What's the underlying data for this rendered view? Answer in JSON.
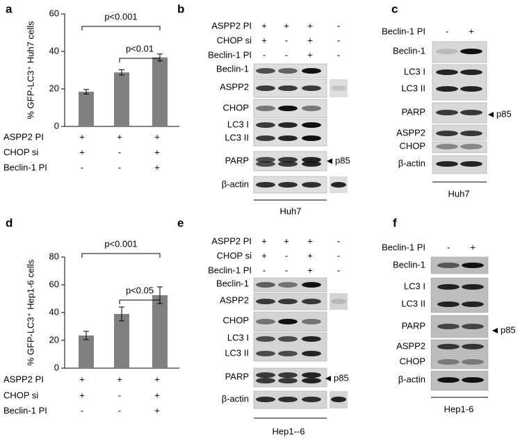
{
  "chart_data": [
    {
      "type": "bar",
      "panel_label": "a",
      "y_label": "% GFP-LC3⁺ Huh7 cells",
      "values": [
        18.5,
        28.8,
        36.8
      ],
      "errors": [
        1.2,
        1.4,
        1.8
      ],
      "color": "#808080",
      "ylim": [
        0,
        60
      ],
      "yticks": [
        0,
        20,
        40,
        60
      ],
      "annotations": [
        "p<0.001",
        "p<0.01"
      ],
      "conditions": [
        {
          "name": "ASPP2 PI",
          "signs": [
            "+",
            "+",
            "+"
          ]
        },
        {
          "name": "CHOP si",
          "signs": [
            "+",
            "-",
            "+"
          ]
        },
        {
          "name": "Beclin-1 PI",
          "signs": [
            "-",
            "-",
            "+"
          ]
        }
      ]
    },
    {
      "type": "bar",
      "panel_label": "d",
      "y_label": "% GFP-LC3⁺ Hep1-6 cells",
      "values": [
        23.5,
        39,
        52.5
      ],
      "errors": [
        3,
        5,
        6
      ],
      "color": "#808080",
      "ylim": [
        0,
        80
      ],
      "yticks": [
        0,
        20,
        40,
        60,
        80
      ],
      "annotations": [
        "p<0.001",
        "p<0.05"
      ],
      "conditions": [
        {
          "name": "ASPP2 PI",
          "signs": [
            "+",
            "+",
            "+"
          ]
        },
        {
          "name": "CHOP si",
          "signs": [
            "+",
            "-",
            "+"
          ]
        },
        {
          "name": "Beclin-1 PI",
          "signs": [
            "-",
            "-",
            "+"
          ]
        }
      ]
    }
  ],
  "blots": [
    {
      "panel_label": "b",
      "conditions": [
        {
          "name": "ASPP2 PI",
          "signs": [
            "+",
            "+",
            "+",
            "-"
          ]
        },
        {
          "name": "CHOP si",
          "signs": [
            "+",
            "-",
            "+",
            "-"
          ]
        },
        {
          "name": "Beclin-1 PI",
          "signs": [
            "-",
            "-",
            "+",
            "-"
          ]
        }
      ],
      "bands": [
        "Beclin-1",
        "ASPP2",
        "CHOP",
        "LC3 I",
        "LC3 II",
        "PARP",
        "β-actin"
      ],
      "arrow": "p85",
      "cell_line": "Huh7"
    },
    {
      "panel_label": "c",
      "conditions": [
        {
          "name": "Beclin-1 PI",
          "signs": [
            "-",
            "+"
          ]
        }
      ],
      "bands": [
        "Beclin-1",
        "LC3 I",
        "LC3 II",
        "PARP",
        "ASPP2",
        "CHOP",
        "β-actin"
      ],
      "arrow": "p85",
      "cell_line": "Huh7"
    },
    {
      "panel_label": "e",
      "conditions": [
        {
          "name": "ASPP2 PI",
          "signs": [
            "+",
            "+",
            "+",
            "-"
          ]
        },
        {
          "name": "CHOP si",
          "signs": [
            "+",
            "-",
            "+",
            "-"
          ]
        },
        {
          "name": "Beclin-1 PI",
          "signs": [
            "-",
            "-",
            "+",
            "-"
          ]
        }
      ],
      "bands": [
        "Beclin-1",
        "ASPP2",
        "CHOP",
        "LC3 I",
        "LC3 II",
        "PARP",
        "β-actin"
      ],
      "arrow": "p85",
      "cell_line": "Hep1--6"
    },
    {
      "panel_label": "f",
      "conditions": [
        {
          "name": "Beclin-1 PI",
          "signs": [
            "-",
            "+"
          ]
        }
      ],
      "bands": [
        "Beclin-1",
        "LC3 I",
        "LC3 II",
        "PARP",
        "ASPP2",
        "CHOP",
        "β-actin"
      ],
      "arrow": "p85",
      "cell_line": "Hep1-6"
    }
  ]
}
